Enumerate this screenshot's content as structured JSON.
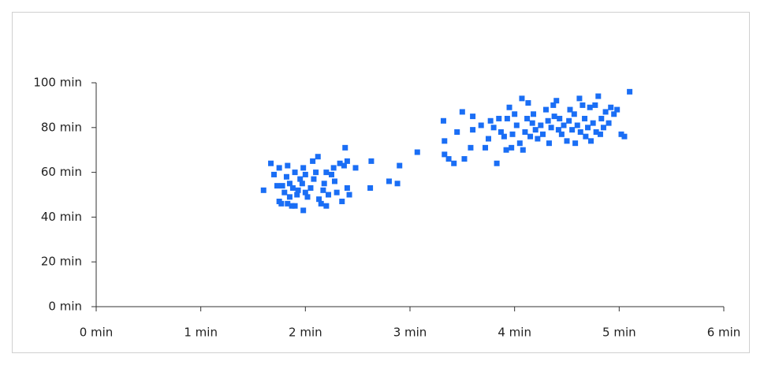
{
  "chart_data": {
    "type": "scatter",
    "color": "#1a6ef5",
    "grid": false,
    "xlim": [
      0,
      6
    ],
    "xticks": [
      {
        "value": 0,
        "label": "0 min"
      },
      {
        "value": 1,
        "label": "1 min"
      },
      {
        "value": 2,
        "label": "2 min"
      },
      {
        "value": 3,
        "label": "3 min"
      },
      {
        "value": 4,
        "label": "4 min"
      },
      {
        "value": 5,
        "label": "5 min"
      },
      {
        "value": 6,
        "label": "6 min"
      }
    ],
    "ylim": [
      0,
      100
    ],
    "yticks": [
      {
        "value": 0,
        "label": "0 min"
      },
      {
        "value": 20,
        "label": "20 min"
      },
      {
        "value": 40,
        "label": "40 min"
      },
      {
        "value": 60,
        "label": "60 min"
      },
      {
        "value": 80,
        "label": "80 min"
      },
      {
        "value": 100,
        "label": "100 min"
      }
    ],
    "x": [
      1.6,
      1.67,
      1.7,
      1.73,
      1.75,
      1.75,
      1.77,
      1.78,
      1.8,
      1.82,
      1.83,
      1.83,
      1.85,
      1.85,
      1.87,
      1.88,
      1.9,
      1.9,
      1.92,
      1.93,
      1.95,
      1.97,
      1.98,
      1.98,
      2.0,
      2.0,
      2.02,
      2.05,
      2.07,
      2.08,
      2.1,
      2.12,
      2.13,
      2.15,
      2.17,
      2.18,
      2.2,
      2.2,
      2.22,
      2.25,
      2.27,
      2.28,
      2.3,
      2.33,
      2.35,
      2.37,
      2.38,
      2.4,
      2.4,
      2.42,
      2.48,
      2.62,
      2.63,
      2.8,
      2.88,
      2.9,
      3.07,
      3.32,
      3.33,
      3.33,
      3.37,
      3.42,
      3.45,
      3.5,
      3.52,
      3.58,
      3.6,
      3.6,
      3.68,
      3.72,
      3.75,
      3.77,
      3.8,
      3.83,
      3.85,
      3.87,
      3.9,
      3.92,
      3.93,
      3.95,
      3.97,
      3.98,
      4.0,
      4.02,
      4.05,
      4.07,
      4.08,
      4.1,
      4.12,
      4.13,
      4.15,
      4.17,
      4.18,
      4.2,
      4.22,
      4.25,
      4.27,
      4.3,
      4.32,
      4.33,
      4.35,
      4.37,
      4.38,
      4.4,
      4.42,
      4.43,
      4.45,
      4.47,
      4.5,
      4.52,
      4.53,
      4.55,
      4.57,
      4.58,
      4.6,
      4.62,
      4.63,
      4.65,
      4.67,
      4.68,
      4.7,
      4.72,
      4.73,
      4.75,
      4.77,
      4.78,
      4.8,
      4.82,
      4.83,
      4.85,
      4.87,
      4.9,
      4.92,
      4.95,
      4.98,
      5.02,
      5.05,
      5.1
    ],
    "values": [
      52,
      64,
      59,
      54,
      62,
      47,
      46,
      54,
      51,
      58,
      63,
      46,
      55,
      49,
      45,
      53,
      60,
      45,
      50,
      52,
      57,
      55,
      62,
      43,
      59,
      51,
      49,
      53,
      65,
      57,
      60,
      67,
      48,
      46,
      52,
      55,
      45,
      60,
      50,
      59,
      62,
      56,
      51,
      64,
      47,
      63,
      71,
      53,
      65,
      50,
      62,
      53,
      65,
      56,
      55,
      63,
      69,
      83,
      74,
      68,
      66,
      64,
      78,
      87,
      66,
      71,
      85,
      79,
      81,
      71,
      75,
      83,
      80,
      64,
      84,
      78,
      76,
      70,
      84,
      89,
      71,
      77,
      86,
      81,
      73,
      93,
      70,
      78,
      84,
      91,
      76,
      82,
      86,
      79,
      75,
      81,
      77,
      88,
      83,
      73,
      80,
      90,
      85,
      92,
      79,
      84,
      77,
      81,
      74,
      83,
      88,
      79,
      86,
      73,
      81,
      93,
      78,
      90,
      84,
      76,
      80,
      89,
      74,
      82,
      90,
      78,
      94,
      77,
      84,
      80,
      87,
      82,
      89,
      86,
      88,
      77,
      76,
      96
    ]
  }
}
